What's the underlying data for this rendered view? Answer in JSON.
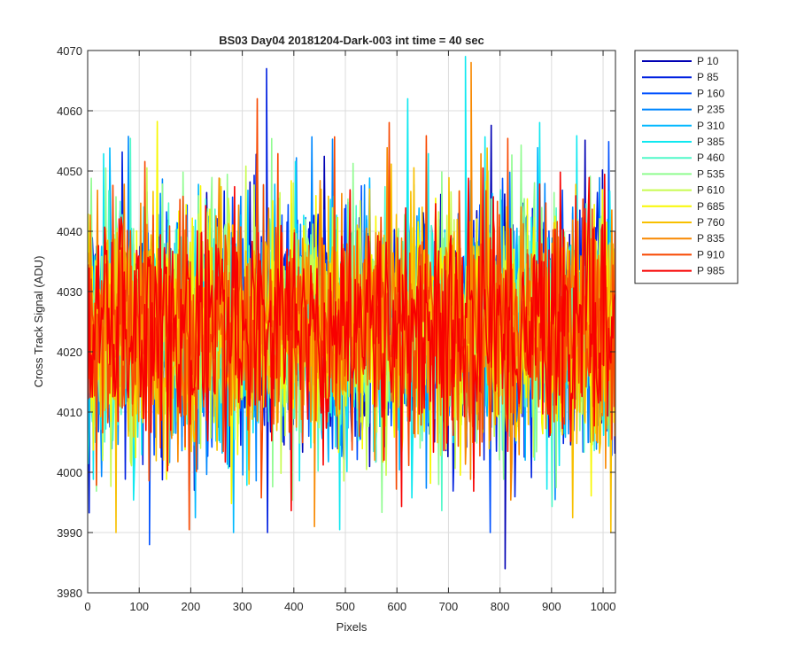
{
  "chart_data": {
    "type": "line",
    "title": "BS03 Day04 20181204-Dark-003 int time = 40 sec",
    "xlabel": "Pixels",
    "ylabel": "Cross Track Signal (ADU)",
    "xlim": [
      0,
      1024
    ],
    "ylim": [
      3980,
      4070
    ],
    "x_ticks": [
      0,
      100,
      200,
      300,
      400,
      500,
      600,
      700,
      800,
      900,
      1000
    ],
    "y_ticks": [
      3980,
      3990,
      4000,
      4010,
      4020,
      4030,
      4040,
      4050,
      4060,
      4070
    ],
    "grid": true,
    "legend_position": "outside-top-right",
    "x_start": 1,
    "x_end": 1024,
    "series_mean_approx": 4024,
    "series_noise_range_approx": [
      3990,
      4062
    ],
    "series": [
      {
        "name": "P 10",
        "color": "#0000b4"
      },
      {
        "name": "P 85",
        "color": "#0020e0"
      },
      {
        "name": "P 160",
        "color": "#0050ff"
      },
      {
        "name": "P 235",
        "color": "#0088ff"
      },
      {
        "name": "P 310",
        "color": "#00b8ff"
      },
      {
        "name": "P 385",
        "color": "#10e8f0"
      },
      {
        "name": "P 460",
        "color": "#50f8c8"
      },
      {
        "name": "P 535",
        "color": "#90fc90"
      },
      {
        "name": "P 610",
        "color": "#c8fc50"
      },
      {
        "name": "P 685",
        "color": "#f8f800"
      },
      {
        "name": "P 760",
        "color": "#f8c000"
      },
      {
        "name": "P 835",
        "color": "#f88800"
      },
      {
        "name": "P 910",
        "color": "#f84800"
      },
      {
        "name": "P 985",
        "color": "#f80000"
      }
    ],
    "annotations": [
      {
        "series": "P 10",
        "x": 810,
        "y": 3984
      },
      {
        "series": "P 85",
        "x": 347,
        "y": 4067
      },
      {
        "series": "P 385",
        "x": 733,
        "y": 4069
      },
      {
        "series": "P 835",
        "x": 744,
        "y": 4068
      },
      {
        "series": "P 160",
        "x": 120,
        "y": 3988
      },
      {
        "series": "P 835",
        "x": 440,
        "y": 3991
      }
    ]
  }
}
